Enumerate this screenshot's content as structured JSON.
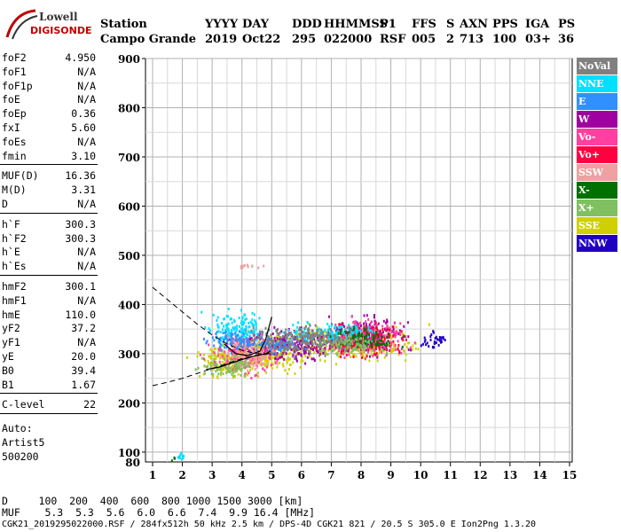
{
  "logo": {
    "line1": "Lowell",
    "line2": "DIGISONDE"
  },
  "header": {
    "labels": [
      {
        "key": "station",
        "text": "Station"
      },
      {
        "key": "yyyy",
        "text": "YYYY"
      },
      {
        "key": "day",
        "text": "DAY"
      },
      {
        "key": "ddd",
        "text": "DDD"
      },
      {
        "key": "hhmmss",
        "text": "HHMMSS"
      },
      {
        "key": "p1",
        "text": "P1"
      },
      {
        "key": "ffs",
        "text": "FFS"
      },
      {
        "key": "s",
        "text": "S"
      },
      {
        "key": "axn",
        "text": "AXN"
      },
      {
        "key": "pps",
        "text": "PPS"
      },
      {
        "key": "iga",
        "text": "IGA"
      },
      {
        "key": "ps",
        "text": "PS"
      }
    ],
    "values": [
      {
        "key": "station",
        "text": "Campo Grande"
      },
      {
        "key": "yyyy",
        "text": "2019"
      },
      {
        "key": "day",
        "text": "Oct22"
      },
      {
        "key": "ddd",
        "text": "295"
      },
      {
        "key": "hhmmss",
        "text": "022000"
      },
      {
        "key": "p1",
        "text": "RSF"
      },
      {
        "key": "ffs",
        "text": "005"
      },
      {
        "key": "s",
        "text": "2"
      },
      {
        "key": "axn",
        "text": "713"
      },
      {
        "key": "pps",
        "text": "100"
      },
      {
        "key": "iga",
        "text": "03+"
      },
      {
        "key": "ps",
        "text": "36"
      }
    ]
  },
  "params": {
    "group1": [
      {
        "label": "foF2",
        "value": "4.950"
      },
      {
        "label": "foF1",
        "value": "N/A"
      },
      {
        "label": "foF1p",
        "value": "N/A"
      },
      {
        "label": "foE",
        "value": "N/A"
      },
      {
        "label": "foEp",
        "value": "0.36"
      },
      {
        "label": "fxI",
        "value": "5.60"
      },
      {
        "label": "foEs",
        "value": "N/A"
      },
      {
        "label": "fmin",
        "value": "3.10"
      }
    ],
    "group2": [
      {
        "label": "MUF(D)",
        "value": "16.36"
      },
      {
        "label": "M(D)",
        "value": "3.31"
      },
      {
        "label": "D",
        "value": "N/A"
      }
    ],
    "group3": [
      {
        "label": "h`F",
        "value": "300.3"
      },
      {
        "label": "h`F2",
        "value": "300.3"
      },
      {
        "label": "h`E",
        "value": "N/A"
      },
      {
        "label": "h`Es",
        "value": "N/A"
      }
    ],
    "group4": [
      {
        "label": "hmF2",
        "value": "300.1"
      },
      {
        "label": "hmF1",
        "value": "N/A"
      },
      {
        "label": "hmE",
        "value": "110.0"
      },
      {
        "label": "yF2",
        "value": "37.2"
      },
      {
        "label": "yF1",
        "value": "N/A"
      },
      {
        "label": "yE",
        "value": "20.0"
      },
      {
        "label": "B0",
        "value": "39.4"
      },
      {
        "label": "B1",
        "value": "1.67"
      }
    ],
    "group5": [
      {
        "label": "C-level",
        "value": "22"
      }
    ],
    "auto": [
      "Auto:",
      "Artist5",
      "500200"
    ]
  },
  "legend": [
    {
      "label": "NoVal",
      "color": "#808080"
    },
    {
      "label": "NNE",
      "color": "#00e0ff"
    },
    {
      "label": "E",
      "color": "#3090ff"
    },
    {
      "label": "W",
      "color": "#a000a0"
    },
    {
      "label": "Vo-",
      "color": "#ff40a0"
    },
    {
      "label": "Vo+",
      "color": "#ff0040"
    },
    {
      "label": "SSW",
      "color": "#f0a0a0"
    },
    {
      "label": "X-",
      "color": "#007000"
    },
    {
      "label": "X+",
      "color": "#80c060"
    },
    {
      "label": "SSE",
      "color": "#d0d000"
    },
    {
      "label": "NNW",
      "color": "#2000c0"
    }
  ],
  "footer": {
    "d_row": "D     100  200  400  600  800 1000 1500 3000 [km]",
    "muf_row": "MUF    5.3  5.3  5.6  6.0  6.6  7.4  9.9 16.4 [MHz]",
    "file_row": "CGK21_2019295022000.RSF / 284fx512h 50 kHz 2.5 km / DPS-4D CGK21 821 / 20.5 S 305.0 E Ion2Png 1.3.20"
  },
  "chart_data": {
    "type": "scatter",
    "title": "",
    "xlabel": "",
    "ylabel": "",
    "xlim": [
      1,
      15
    ],
    "ylim": [
      80,
      900
    ],
    "x_ticks": [
      "1",
      "2",
      "3",
      "4",
      "5",
      "6",
      "7",
      "8",
      "9",
      "10",
      "11",
      "12",
      "13",
      "14",
      "15"
    ],
    "y_ticks": [
      "100",
      "200",
      "300",
      "400",
      "500",
      "600",
      "700",
      "800",
      "900"
    ],
    "y_tick_extra": "80",
    "grid": true,
    "legend_position": "right",
    "series": [
      {
        "legend_index": 9,
        "clusters": [
          [
            4.6,
            300,
            2.2,
            55
          ],
          [
            7.5,
            325,
            3.0,
            50
          ],
          [
            3.5,
            285,
            1.5,
            40
          ]
        ]
      },
      {
        "legend_index": 3,
        "clusters": [
          [
            8.0,
            340,
            2.0,
            50
          ],
          [
            5.5,
            320,
            2.5,
            45
          ]
        ]
      },
      {
        "legend_index": 4,
        "clusters": [
          [
            8.2,
            335,
            2.0,
            50
          ],
          [
            4.0,
            300,
            1.5,
            50
          ]
        ]
      },
      {
        "legend_index": 5,
        "clusters": [
          [
            8.0,
            330,
            1.8,
            45
          ]
        ]
      },
      {
        "legend_index": 1,
        "clusters": [
          [
            3.8,
            355,
            1.4,
            50
          ],
          [
            7.0,
            345,
            2.0,
            30
          ],
          [
            1.9,
            95,
            0.3,
            15
          ]
        ]
      },
      {
        "legend_index": 2,
        "clusters": [
          [
            3.8,
            330,
            1.4,
            35
          ],
          [
            5.2,
            320,
            1.2,
            25
          ]
        ]
      },
      {
        "legend_index": 10,
        "clusters": [
          [
            10.5,
            330,
            0.6,
            25
          ]
        ]
      },
      {
        "legend_index": 6,
        "clusters": [
          [
            4.3,
            480,
            1.0,
            5
          ],
          [
            4.2,
            300,
            1.3,
            40
          ]
        ]
      },
      {
        "legend_index": 7,
        "clusters": [
          [
            8.0,
            330,
            1.5,
            30
          ],
          [
            1.7,
            88,
            0.2,
            6
          ]
        ]
      },
      {
        "legend_index": 8,
        "clusters": [
          [
            3.5,
            275,
            1.2,
            30
          ],
          [
            7.5,
            320,
            1.5,
            30
          ]
        ]
      },
      {
        "legend_index": 0,
        "clusters": [
          [
            6.0,
            330,
            2.5,
            40
          ]
        ]
      }
    ],
    "curves": {
      "dashed_profile": [
        [
          1.0,
          435
        ],
        [
          1.5,
          410
        ],
        [
          2.0,
          385
        ],
        [
          2.5,
          360
        ],
        [
          3.0,
          338
        ],
        [
          3.5,
          320
        ],
        [
          4.0,
          307
        ],
        [
          4.5,
          300
        ],
        [
          4.95,
          300.3
        ]
      ],
      "dashed_lower": [
        [
          1.0,
          235
        ],
        [
          1.5,
          242
        ],
        [
          2.0,
          250
        ],
        [
          2.5,
          260
        ],
        [
          3.0,
          270
        ],
        [
          3.5,
          280
        ],
        [
          4.0,
          290
        ],
        [
          4.5,
          297
        ],
        [
          4.95,
          300.3
        ]
      ],
      "solid_trace_o": [
        [
          2.8,
          268
        ],
        [
          3.2,
          272
        ],
        [
          3.6,
          280
        ],
        [
          4.0,
          288
        ],
        [
          4.4,
          295
        ],
        [
          4.8,
          300
        ],
        [
          4.95,
          305
        ]
      ],
      "solid_trace_x": [
        [
          3.4,
          320
        ],
        [
          3.8,
          300
        ],
        [
          4.2,
          296
        ],
        [
          4.6,
          305
        ],
        [
          4.8,
          330
        ],
        [
          5.0,
          375
        ]
      ]
    }
  }
}
